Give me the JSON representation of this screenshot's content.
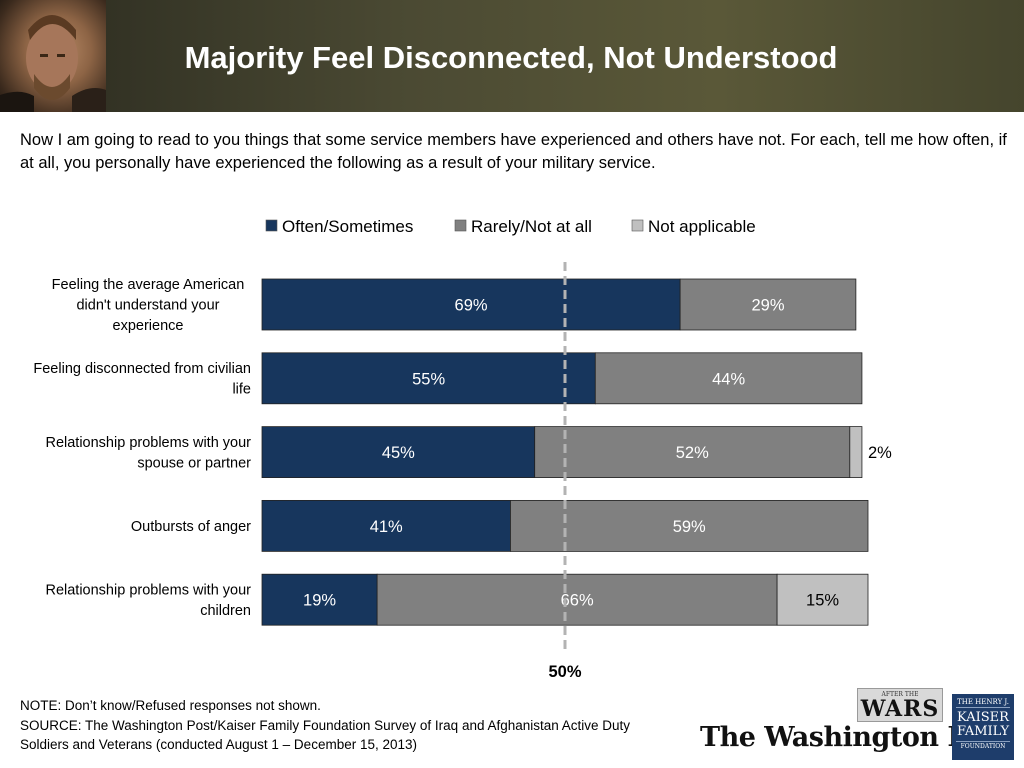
{
  "header": {
    "title": "Majority Feel Disconnected, Not Understood"
  },
  "question": "Now I am going to read to you things that some service members have experienced and others have not. For each, tell me how often, if at all, you personally have experienced the following as a result of your military service.",
  "chart_data": {
    "type": "bar",
    "orientation": "horizontal",
    "stacked": true,
    "title": "",
    "xlabel": "",
    "ylabel": "",
    "xlim": [
      0,
      100
    ],
    "legend_position": "top",
    "categories": [
      [
        "Feeling the average American",
        "didn't understand your",
        "experience"
      ],
      [
        "Feeling disconnected from civilian",
        "life"
      ],
      [
        "Relationship problems with your",
        "spouse or partner"
      ],
      [
        "Outbursts of anger"
      ],
      [
        "Relationship problems with your",
        "children"
      ]
    ],
    "series": [
      {
        "name": "Often/Sometimes",
        "color": "#17365d",
        "label_color": "#ffffff",
        "values": [
          69,
          55,
          45,
          41,
          19
        ]
      },
      {
        "name": "Rarely/Not at all",
        "color": "#808080",
        "label_color": "#ffffff",
        "values": [
          29,
          44,
          52,
          59,
          66
        ]
      },
      {
        "name": "Not applicable",
        "color": "#c0c0c0",
        "label_color": "#000000",
        "values": [
          null,
          null,
          2,
          null,
          15
        ]
      }
    ],
    "reference_line": {
      "value": 50,
      "label": "50%"
    },
    "value_suffix": "%"
  },
  "footer": {
    "note": "NOTE: Don’t know/Refused responses not shown.",
    "source_line1": "SOURCE: The Washington Post/Kaiser Family Foundation Survey of Iraq and Afghanistan Active Duty",
    "source_line2": "Soldiers and Veterans (conducted August 1 – December 15, 2013)"
  },
  "logos": {
    "wars_small": "AFTER THE",
    "wars_big": "WARS",
    "washington_post": "The Washington Post",
    "kff_line1": "THE HENRY J.",
    "kff_line2": "KAISER",
    "kff_line3": "FAMILY",
    "kff_line4": "FOUNDATION"
  },
  "colors": {
    "navy": "#17365d",
    "gray": "#808080",
    "light_gray": "#c0c0c0",
    "reference_line": "#b3b3b3"
  }
}
